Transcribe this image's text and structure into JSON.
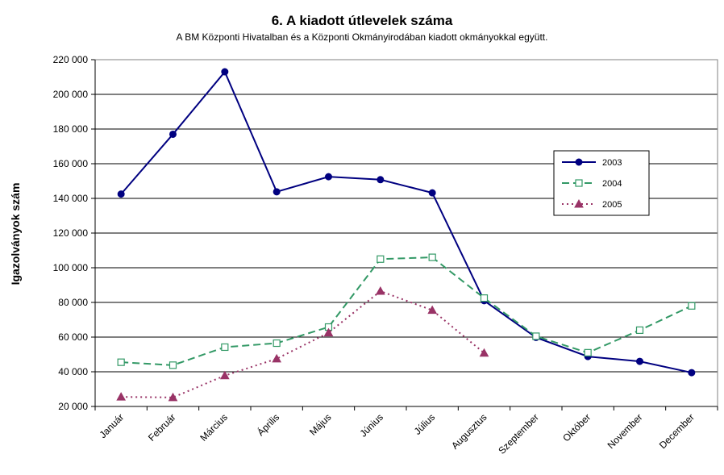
{
  "chart_data": {
    "type": "line",
    "title": "6. A  kiadott útlevelek száma",
    "subtitle": "A BM Központi Hivatalban és a Központi Okmányirodában kiadott okmányokkal együtt.",
    "ylabel": "Igazolványok szám",
    "xlabel": "",
    "ylim": [
      20000,
      220000
    ],
    "yticks": [
      20000,
      40000,
      60000,
      80000,
      100000,
      120000,
      140000,
      160000,
      180000,
      200000,
      220000
    ],
    "ytick_labels": [
      "20 000",
      "40 000",
      "60 000",
      "80 000",
      "100 000",
      "120 000",
      "140 000",
      "160 000",
      "180 000",
      "200 000",
      "220 000"
    ],
    "categories": [
      "Január",
      "Február",
      "Március",
      "Április",
      "Május",
      "Június",
      "Július",
      "Augusztus",
      "Szeptember",
      "Október",
      "November",
      "December"
    ],
    "grid": "horizontal",
    "legend_position": "right",
    "series": [
      {
        "name": "2003",
        "color": "#000080",
        "style": "solid",
        "marker": "circle",
        "values": [
          142500,
          177000,
          213000,
          143800,
          152500,
          150800,
          143200,
          81000,
          59800,
          48800,
          46000,
          39500
        ]
      },
      {
        "name": "2004",
        "color": "#339966",
        "style": "dashed",
        "marker": "square-open",
        "values": [
          45500,
          43800,
          54200,
          56500,
          65800,
          105000,
          106000,
          82500,
          60500,
          51000,
          64000,
          78000
        ]
      },
      {
        "name": "2005",
        "color": "#993366",
        "style": "dotted",
        "marker": "triangle",
        "values": [
          25500,
          25200,
          37800,
          47500,
          62500,
          86500,
          75500,
          50800,
          null,
          null,
          null,
          null
        ]
      }
    ]
  }
}
